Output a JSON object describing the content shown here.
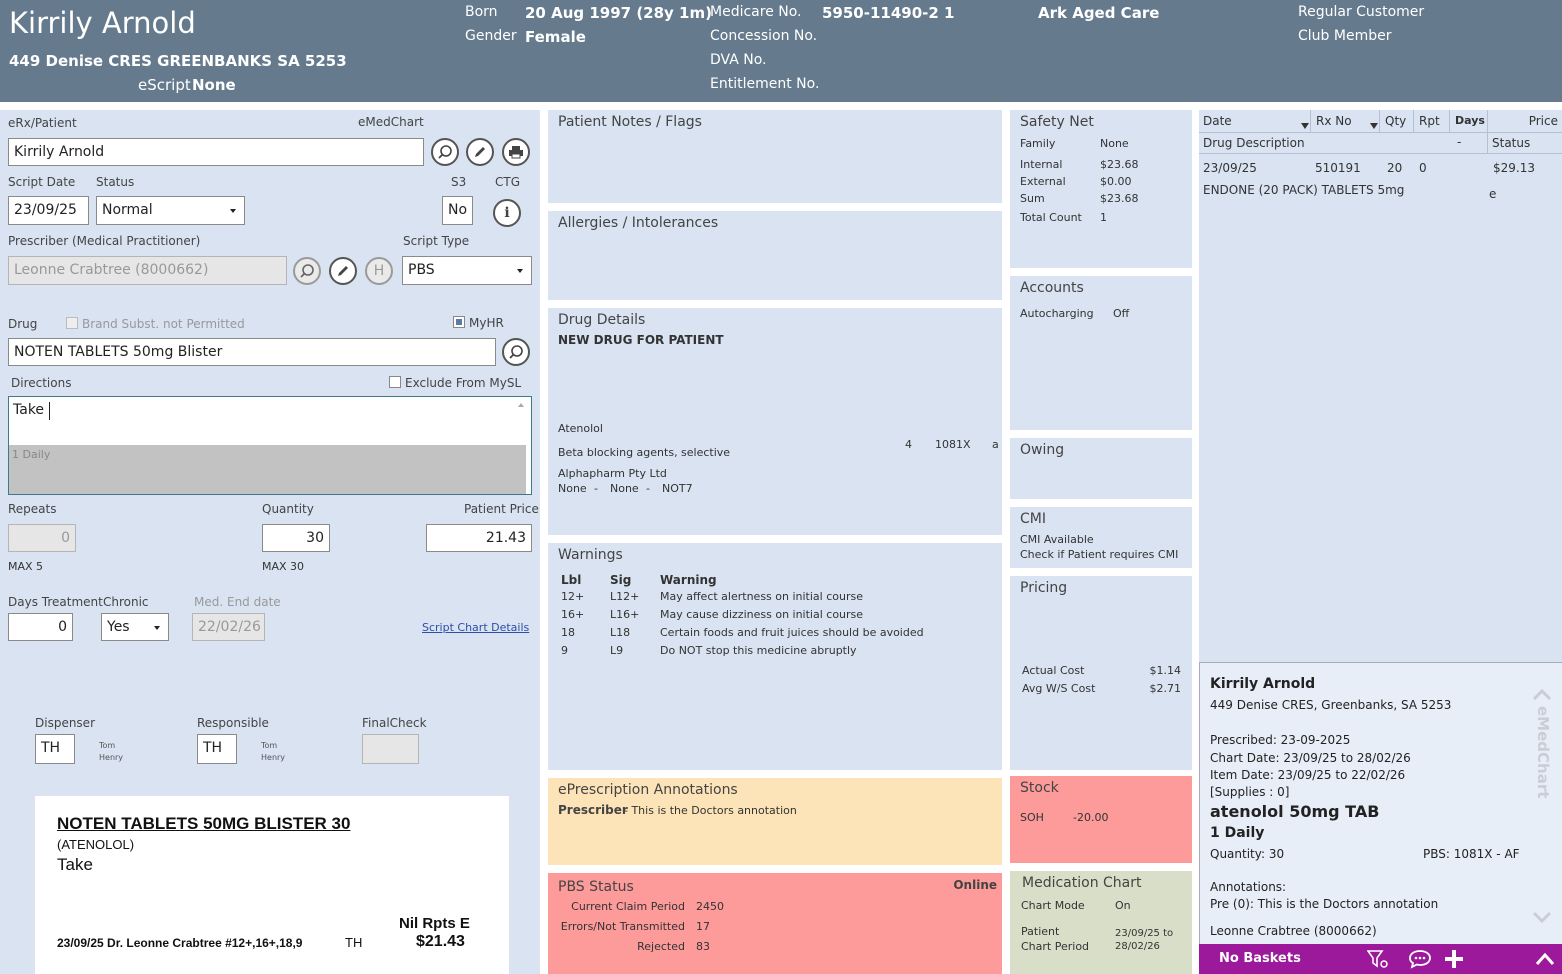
{
  "header": {
    "patient_name": "Kirrily Arnold",
    "address": "449 Denise CRES GREENBANKS SA 5253",
    "escript_label": "eScript",
    "escript_value": "None",
    "born_label": "Born",
    "born_value": "20 Aug 1997 (28y 1m)",
    "gender_label": "Gender",
    "gender_value": "Female",
    "medicare_label": "Medicare No.",
    "medicare_value": "5950-11490-2 1",
    "concession_label": "Concession No.",
    "dva_label": "DVA No.",
    "entitlement_label": "Entitlement No.",
    "facility": "Ark Aged Care",
    "regular_customer": "Regular Customer",
    "club_member": "Club Member"
  },
  "form": {
    "erx_label": "eRx/Patient",
    "emedchart_label": "eMedChart",
    "patient_value": "Kirrily Arnold",
    "script_date_label": "Script Date",
    "script_date_value": "23/09/25",
    "status_label": "Status",
    "status_value": "Normal",
    "s3_label": "S3",
    "s3_value": "No",
    "ctg_label": "CTG",
    "prescriber_label": "Prescriber (Medical Practitioner)",
    "prescriber_value": "Leonne Crabtree (8000662)",
    "h_label": "H",
    "script_type_label": "Script Type",
    "script_type_value": "PBS",
    "drug_label": "Drug",
    "brand_subst_label": "Brand Subst. not Permitted",
    "myhr_label": "MyHR",
    "drug_value": "NOTEN TABLETS 50mg Blister",
    "directions_label": "Directions",
    "exclude_label": "Exclude From MySL",
    "directions_value": "Take",
    "directions_suggest": "1 Daily",
    "repeats_label": "Repeats",
    "repeats_value": "0",
    "repeats_max": "MAX 5",
    "quantity_label": "Quantity",
    "quantity_value": "30",
    "quantity_max": "MAX 30",
    "patient_price_label": "Patient Price",
    "patient_price_value": "21.43",
    "days_treatment_label": "Days Treatment",
    "days_treatment_value": "0",
    "chronic_label": "Chronic",
    "chronic_value": "Yes",
    "med_end_label": "Med. End date",
    "med_end_value": "22/02/26",
    "script_chart_link": "Script Chart Details",
    "dispenser_label": "Dispenser",
    "dispenser_value": "TH",
    "dispenser_name1": "Tom",
    "dispenser_name2": "Henry",
    "responsible_label": "Responsible",
    "responsible_value": "TH",
    "responsible_name1": "Tom",
    "responsible_name2": "Henry",
    "finalcheck_label": "FinalCheck"
  },
  "label_preview": {
    "title": "NOTEN TABLETS 50MG BLISTER 30",
    "generic": "(ATENOLOL)",
    "directions": "Take",
    "nil_rpts": "Nil Rpts E",
    "footer": "23/09/25 Dr. Leonne Crabtree #12+,16+,18,9",
    "initials": "TH",
    "price": "$21.43"
  },
  "patient_notes": {
    "title": "Patient Notes / Flags"
  },
  "allergies": {
    "title": "Allergies / Intolerances"
  },
  "drug_details": {
    "title": "Drug Details",
    "new_drug": "NEW DRUG FOR PATIENT",
    "generic": "Atenolol",
    "class": "Beta blocking agents, selective",
    "qty": "4",
    "pbs_code": "1081X",
    "flag": "a",
    "manufacturer": "Alphapharm Pty Ltd",
    "line1": "None",
    "line2": "None",
    "line3": "NOT7",
    "dash": "-"
  },
  "warnings": {
    "title": "Warnings",
    "col_lbl": "Lbl",
    "col_sig": "Sig",
    "col_warning": "Warning",
    "rows": [
      {
        "lbl": "12+",
        "sig": "L12+",
        "text": "May affect alertness on initial course"
      },
      {
        "lbl": "16+",
        "sig": "L16+",
        "text": "May cause dizziness on initial course"
      },
      {
        "lbl": "18",
        "sig": "L18",
        "text": "Certain foods and fruit juices should be avoided"
      },
      {
        "lbl": "9",
        "sig": "L9",
        "text": "Do NOT stop this medicine abruptly"
      }
    ]
  },
  "annotations": {
    "title": "ePrescription Annotations",
    "prescriber": "Prescriber",
    "text": "- This is the Doctors annotation"
  },
  "pbs_status": {
    "title": "PBS Status",
    "online": "Online",
    "rows": [
      {
        "label": "Current Claim Period",
        "value": "2450"
      },
      {
        "label": "Errors/Not Transmitted",
        "value": "17"
      },
      {
        "label": "Rejected",
        "value": "83"
      }
    ]
  },
  "safety_net": {
    "title": "Safety Net",
    "rows": [
      {
        "label": "Family",
        "value": "None"
      },
      {
        "label": "Internal",
        "value": "$23.68"
      },
      {
        "label": "External",
        "value": "$0.00"
      },
      {
        "label": "Sum",
        "value": "$23.68"
      },
      {
        "label": "Total Count",
        "value": "1"
      }
    ]
  },
  "accounts": {
    "title": "Accounts",
    "autocharging_label": "Autocharging",
    "autocharging_value": "Off"
  },
  "owing": {
    "title": "Owing"
  },
  "cmi": {
    "title": "CMI",
    "line1": "CMI Available",
    "line2": "Check if Patient requires CMI"
  },
  "pricing": {
    "title": "Pricing",
    "actual_label": "Actual Cost",
    "actual_value": "$1.14",
    "avg_label": "Avg W/S Cost",
    "avg_value": "$2.71"
  },
  "stock": {
    "title": "Stock",
    "soh_label": "SOH",
    "soh_value": "-20.00"
  },
  "med_chart": {
    "title": "Medication Chart",
    "mode_label": "Chart Mode",
    "mode_value": "On",
    "period_label1": "Patient",
    "period_label2": "Chart Period",
    "period_value1": "23/09/25 to",
    "period_value2": "28/02/26"
  },
  "history": {
    "headers": {
      "date": "Date",
      "rxno": "Rx No",
      "qty": "Qty",
      "rpt": "Rpt",
      "days": "Days",
      "price": "Price",
      "desc": "Drug Description",
      "dash": "-",
      "status": "Status"
    },
    "rows": [
      {
        "date": "23/09/25",
        "rxno": "510191",
        "qty": "20",
        "rpt": "0",
        "price": "$29.13",
        "desc": "ENDONE (20 PACK) TABLETS 5mg",
        "status": "e"
      }
    ]
  },
  "emedchart_card": {
    "name": "Kirrily Arnold",
    "address": "449 Denise CRES, Greenbanks, SA 5253",
    "prescribed": "Prescribed: 23-09-2025",
    "chart_date": "Chart Date: 23/09/25 to 28/02/26",
    "item_date": "Item Date: 23/09/25 to 22/02/26",
    "supplies": "[Supplies : 0]",
    "drug": "atenolol 50mg TAB",
    "dose": "1 Daily",
    "quantity": "Quantity: 30",
    "pbs": "PBS: 1081X - AF",
    "annotations_label": "Annotations:",
    "annotation": "Pre (0): This is the Doctors annotation",
    "prescriber": "Leonne Crabtree (8000662)",
    "side_label": "eMedChart"
  },
  "bottom_bar": {
    "baskets": "No Baskets"
  },
  "colors": {
    "header": "#657a8d",
    "panel": "#d9e3f2",
    "annotation": "#fde4b8",
    "alert": "#fd9a9a",
    "med_chart": "#d8dec8",
    "basket_bar": "#9b199a"
  }
}
